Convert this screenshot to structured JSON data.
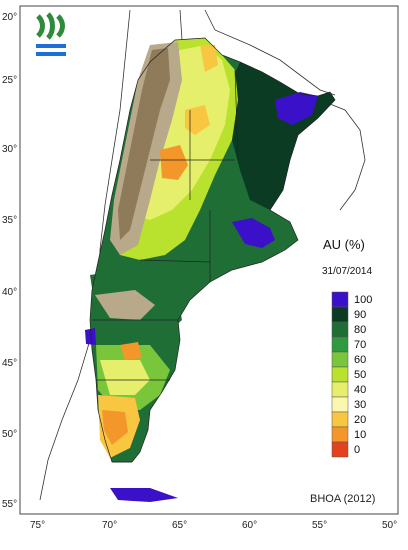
{
  "map": {
    "legend": {
      "title": "AU (%)",
      "date": "31/07/2014",
      "classes": [
        {
          "label": "100",
          "color": "#3a10c8"
        },
        {
          "label": "90",
          "color": "#0b3b22"
        },
        {
          "label": "80",
          "color": "#1f6e35"
        },
        {
          "label": "70",
          "color": "#2f9a3e"
        },
        {
          "label": "60",
          "color": "#79c63a"
        },
        {
          "label": "50",
          "color": "#b8e22d"
        },
        {
          "label": "40",
          "color": "#e6ef6b"
        },
        {
          "label": "30",
          "color": "#fbf7b0"
        },
        {
          "label": "20",
          "color": "#f9c642"
        },
        {
          "label": "10",
          "color": "#f4972b"
        },
        {
          "label": "0",
          "color": "#e2431e"
        }
      ]
    },
    "lat_labels": [
      "20°",
      "25°",
      "30°",
      "35°",
      "40°",
      "45°",
      "50°",
      "55°"
    ],
    "lon_labels": [
      "75°",
      "70°",
      "65°",
      "60°",
      "55°",
      "50°"
    ],
    "source": "BHOA (2012)",
    "logo_icon": "water-logo-icon",
    "colors": {
      "ocean": "#ffffff",
      "neighbor_fill": "#ffffff",
      "border": "#222222",
      "andes_relief": "#b7a98a",
      "andes_shadow": "#8f7a5a"
    }
  }
}
